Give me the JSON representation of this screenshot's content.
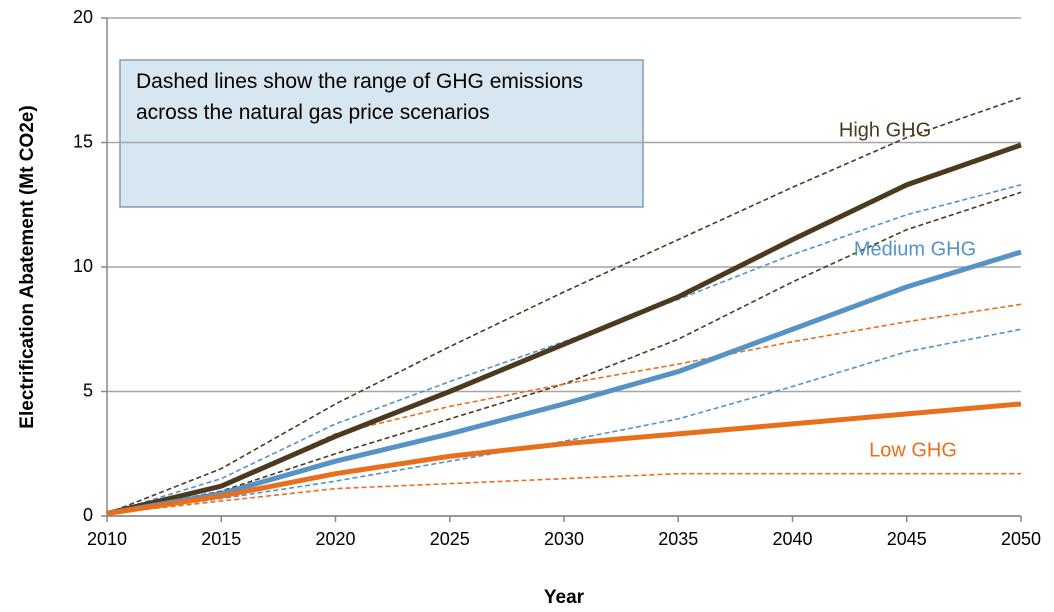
{
  "chart_data": {
    "type": "line",
    "x_label": "Year",
    "y_label": "Electrification Abatement (Mt CO2e)",
    "annotation": "Dashed lines show the range of GHG emissions across the natural gas price scenarios",
    "x": [
      2010,
      2015,
      2020,
      2025,
      2030,
      2035,
      2040,
      2045,
      2050
    ],
    "xlim": [
      2010,
      2050
    ],
    "xticks": [
      2010,
      2015,
      2020,
      2025,
      2030,
      2035,
      2040,
      2045,
      2050
    ],
    "ylim": [
      0,
      20
    ],
    "yticks": [
      0,
      5,
      10,
      15,
      20
    ],
    "grid": true,
    "series": [
      {
        "name": "High GHG",
        "color": "#4b3a20",
        "dashed": false,
        "values": [
          0.1,
          1.2,
          3.2,
          5.0,
          6.9,
          8.8,
          11.1,
          13.3,
          14.9
        ]
      },
      {
        "color": "#4b3a20",
        "dashed": true,
        "values": [
          0.1,
          1.9,
          4.5,
          6.8,
          9.0,
          11.1,
          13.2,
          15.2,
          16.8
        ]
      },
      {
        "color": "#4b3a20",
        "dashed": true,
        "values": [
          0.1,
          1.0,
          2.5,
          3.9,
          5.3,
          7.1,
          9.4,
          11.5,
          13.0
        ]
      },
      {
        "name": "Medium GHG",
        "color": "#5592c6",
        "dashed": false,
        "values": [
          0.1,
          0.9,
          2.2,
          3.3,
          4.5,
          5.8,
          7.5,
          9.2,
          10.6
        ]
      },
      {
        "color": "#5592c6",
        "dashed": true,
        "values": [
          0.1,
          1.5,
          3.7,
          5.4,
          7.0,
          8.7,
          10.5,
          12.1,
          13.3
        ]
      },
      {
        "color": "#5592c6",
        "dashed": true,
        "values": [
          0.1,
          0.7,
          1.4,
          2.2,
          3.0,
          3.9,
          5.2,
          6.6,
          7.5
        ]
      },
      {
        "name": "Low GHG",
        "color": "#e8701c",
        "dashed": false,
        "values": [
          0.1,
          0.8,
          1.7,
          2.4,
          2.9,
          3.3,
          3.7,
          4.1,
          4.5
        ]
      },
      {
        "color": "#e8701c",
        "dashed": true,
        "values": [
          0.1,
          1.2,
          3.3,
          4.4,
          5.3,
          6.1,
          7.0,
          7.8,
          8.5
        ]
      },
      {
        "color": "#e8701c",
        "dashed": true,
        "values": [
          0.1,
          0.6,
          1.1,
          1.3,
          1.5,
          1.7,
          1.7,
          1.7,
          1.7
        ]
      }
    ]
  }
}
